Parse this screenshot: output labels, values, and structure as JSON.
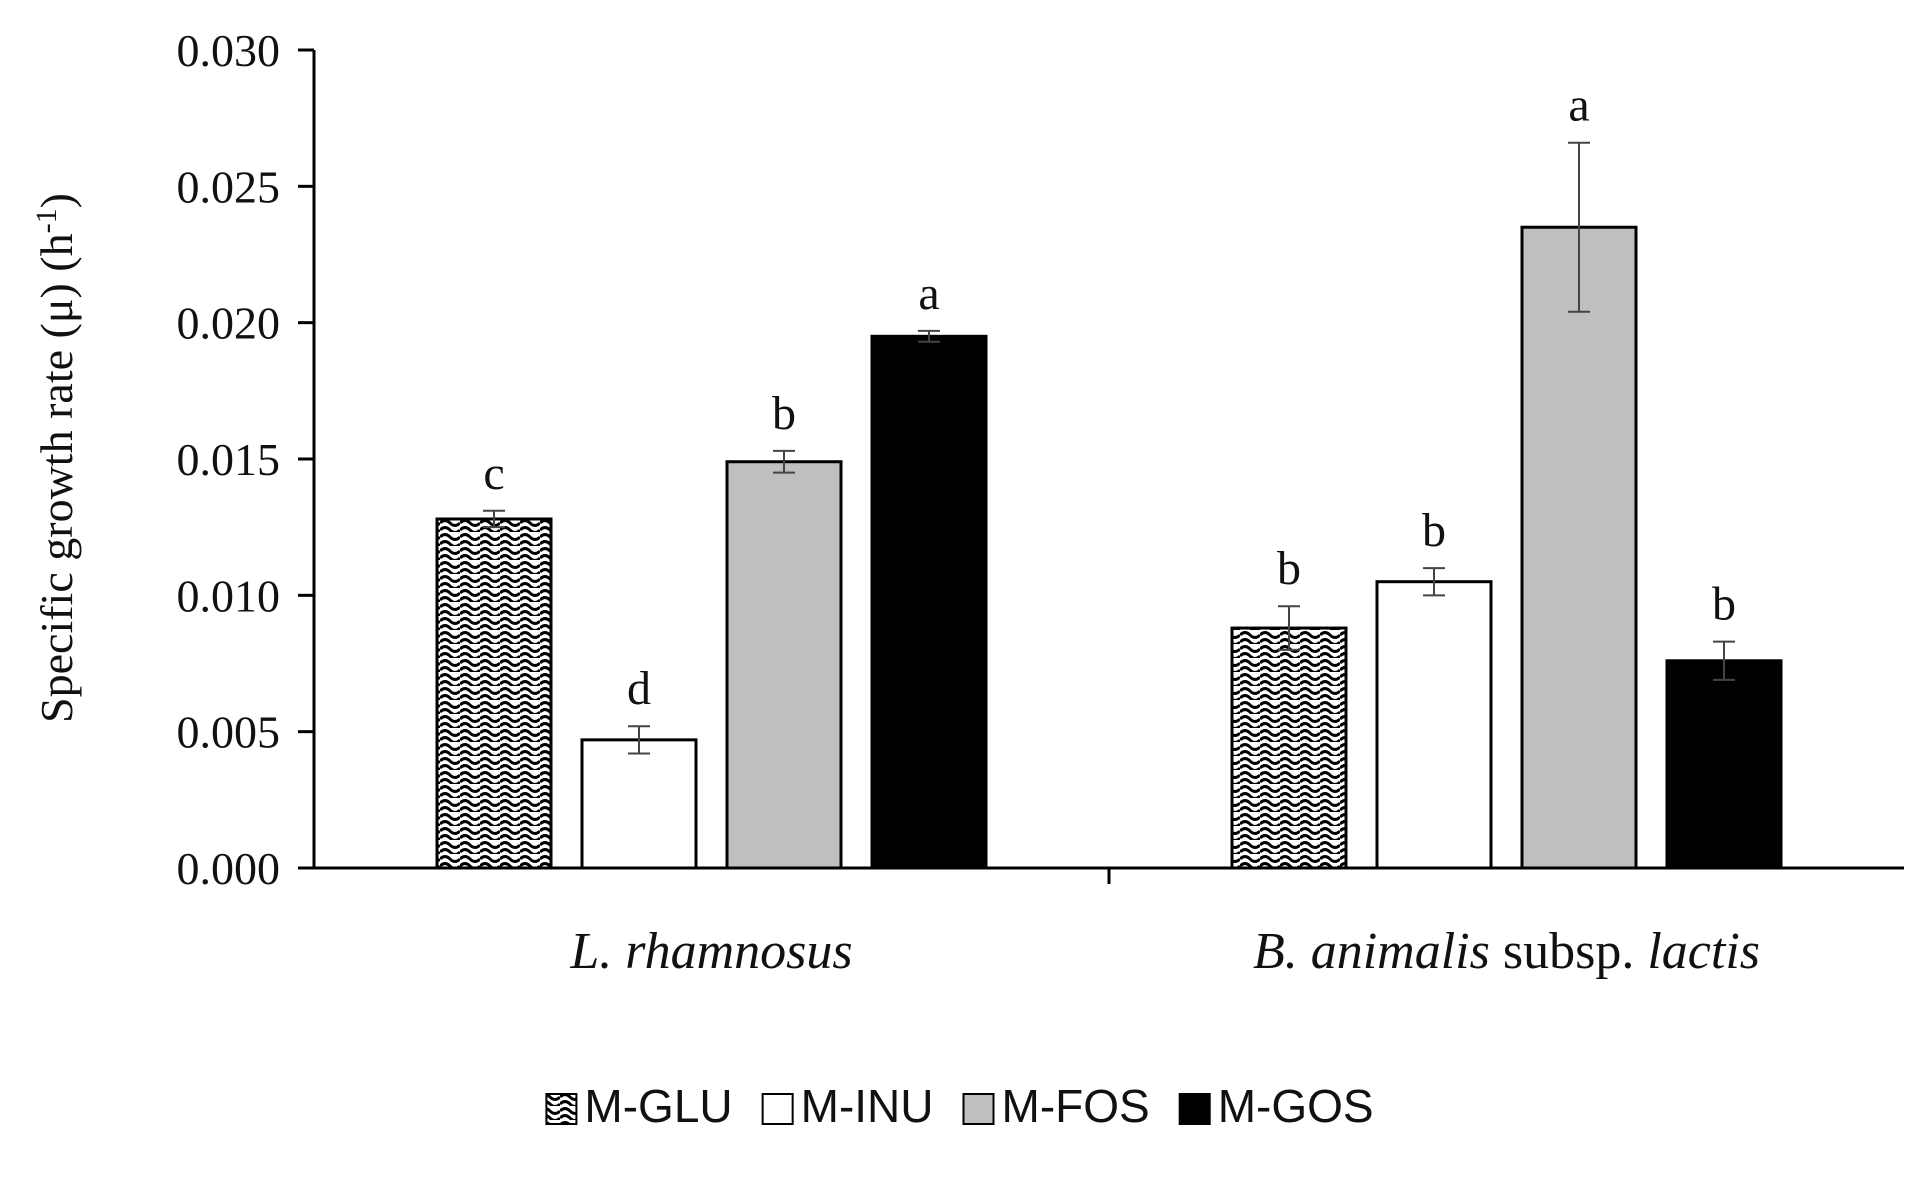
{
  "chart_data": {
    "type": "bar",
    "title": "",
    "xlabel": "",
    "ylabel": "Specific growth rate (μ) (h⁻¹)",
    "ylabel_parts": {
      "main": "Specific growth rate (μ) (h",
      "sup": "-1",
      "close": ")"
    },
    "ylim": [
      0,
      0.03
    ],
    "yticks": [
      0.0,
      0.005,
      0.01,
      0.015,
      0.02,
      0.025,
      0.03
    ],
    "ytick_labels": [
      "0.000",
      "0.005",
      "0.010",
      "0.015",
      "0.020",
      "0.025",
      "0.030"
    ],
    "categories": [
      {
        "parts": [
          {
            "text": "L. rhamnosus",
            "italic": true
          }
        ]
      },
      {
        "parts": [
          {
            "text": "B. animalis",
            "italic": true
          },
          {
            "text": " subsp. ",
            "italic": false
          },
          {
            "text": "lactis",
            "italic": true
          }
        ]
      }
    ],
    "series": [
      {
        "name": "M-GLU",
        "pattern": "wave",
        "values": [
          0.0128,
          0.0088
        ],
        "errors": [
          0.0003,
          0.0008
        ],
        "letters": [
          "c",
          "b"
        ]
      },
      {
        "name": "M-INU",
        "pattern": "white",
        "values": [
          0.0047,
          0.0105
        ],
        "errors": [
          0.0005,
          0.0005
        ],
        "letters": [
          "d",
          "b"
        ]
      },
      {
        "name": "M-FOS",
        "pattern": "gray",
        "values": [
          0.0149,
          0.0235
        ],
        "errors": [
          0.0004,
          0.0031
        ],
        "letters": [
          "b",
          "a"
        ]
      },
      {
        "name": "M-GOS",
        "pattern": "black",
        "values": [
          0.0195,
          0.0076
        ],
        "errors": [
          0.0002,
          0.0007
        ],
        "letters": [
          "a",
          "b"
        ]
      }
    ],
    "legend_position": "bottom-center",
    "colors": {
      "white": "#ffffff",
      "gray": "#bfbfbf",
      "black": "#000000",
      "axis": "#000000"
    }
  }
}
